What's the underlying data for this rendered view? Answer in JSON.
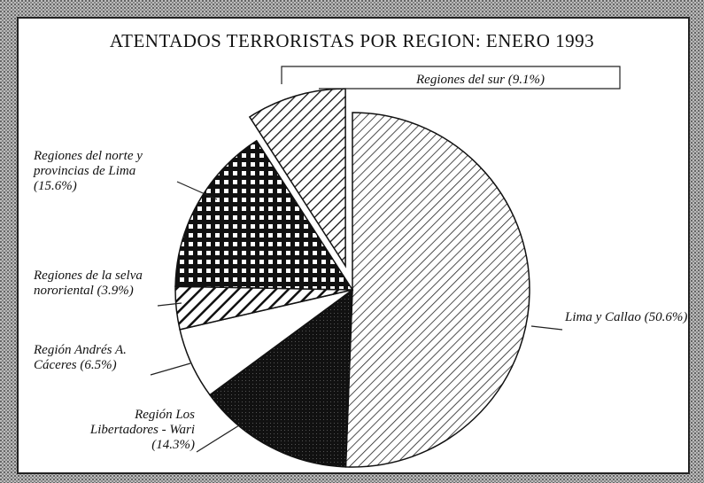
{
  "chart_data": {
    "type": "pie",
    "title": "ATENTADOS TERRORISTAS POR REGION: ENERO 1993",
    "categories": [
      "Lima y Callao",
      "Región Los Libertadores - Wari",
      "Región Andrés A. Cáceres",
      "Regiones de la selva nororiental",
      "Regiones del norte y provincias de Lima",
      "Regiones del sur"
    ],
    "values": [
      50.6,
      14.3,
      6.5,
      3.9,
      15.6,
      9.1
    ],
    "value_labels": [
      "(50.6%)",
      "(14.3%)",
      "(6.5%)",
      "(3.9%)",
      "(15.6%)",
      "(9.1%)"
    ],
    "explode": [
      false,
      false,
      false,
      false,
      false,
      true
    ]
  }
}
